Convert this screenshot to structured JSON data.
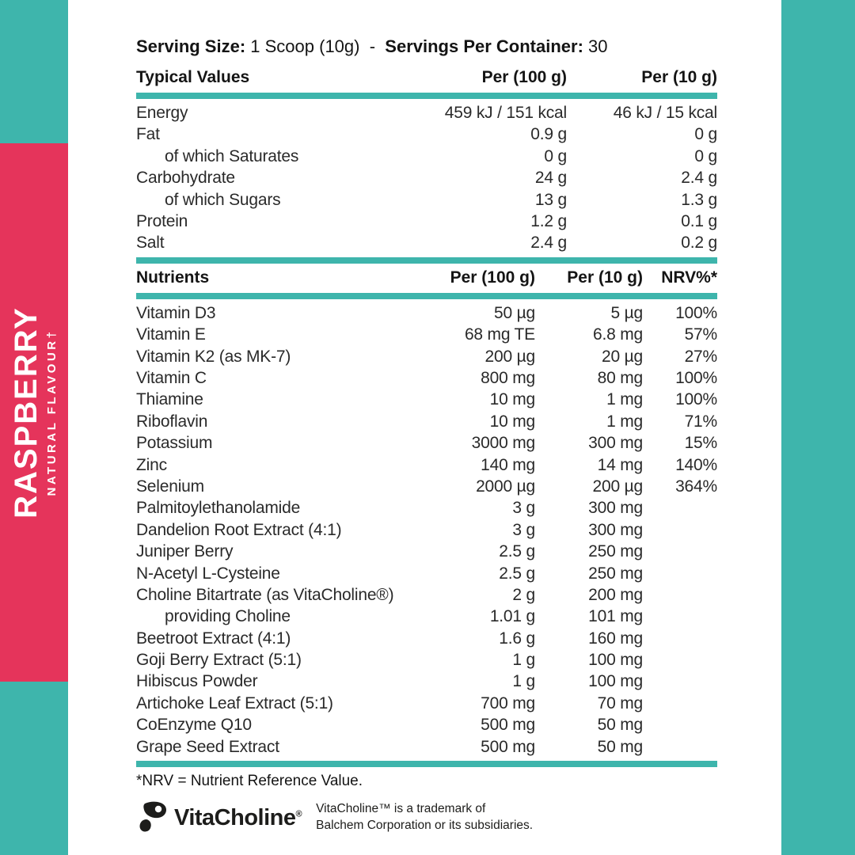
{
  "colors": {
    "teal": "#3EB5AC",
    "pink": "#E5345B",
    "text": "#2A2A2A"
  },
  "sidebar": {
    "flavor": "RASPBERRY",
    "flavor_sub": "NATURAL FLAVOUR†"
  },
  "serving": {
    "size_label": "Serving Size:",
    "size_value": "1 Scoop (10g)",
    "separator": "-",
    "container_label": "Servings Per Container:",
    "container_value": "30"
  },
  "typical_values": {
    "header": {
      "label": "Typical Values",
      "per100": "Per (100 g)",
      "per10": "Per (10 g)"
    },
    "rows": [
      {
        "label": "Energy",
        "indent": false,
        "per100": "459 kJ / 151 kcal",
        "per10": "46 kJ / 15 kcal"
      },
      {
        "label": "Fat",
        "indent": false,
        "per100": "0.9 g",
        "per10": "0 g"
      },
      {
        "label": "of which Saturates",
        "indent": true,
        "per100": "0 g",
        "per10": "0 g"
      },
      {
        "label": "Carbohydrate",
        "indent": false,
        "per100": "24 g",
        "per10": "2.4 g"
      },
      {
        "label": "of which Sugars",
        "indent": true,
        "per100": "13 g",
        "per10": "1.3 g"
      },
      {
        "label": "Protein",
        "indent": false,
        "per100": "1.2 g",
        "per10": "0.1 g"
      },
      {
        "label": "Salt",
        "indent": false,
        "per100": "2.4 g",
        "per10": "0.2 g"
      }
    ]
  },
  "nutrients": {
    "header": {
      "label": "Nutrients",
      "per100": "Per (100 g)",
      "per10": "Per (10 g)",
      "nrv": "NRV%*"
    },
    "rows": [
      {
        "label": "Vitamin D3",
        "indent": false,
        "per100": "50 µg",
        "per10": "5 µg",
        "nrv": "100%"
      },
      {
        "label": "Vitamin E",
        "indent": false,
        "per100": "68 mg TE",
        "per10": "6.8 mg",
        "nrv": "57%"
      },
      {
        "label": "Vitamin K2 (as MK-7)",
        "indent": false,
        "per100": "200 µg",
        "per10": "20 µg",
        "nrv": "27%"
      },
      {
        "label": "Vitamin C",
        "indent": false,
        "per100": "800 mg",
        "per10": "80 mg",
        "nrv": "100%"
      },
      {
        "label": "Thiamine",
        "indent": false,
        "per100": "10 mg",
        "per10": "1 mg",
        "nrv": "100%"
      },
      {
        "label": "Riboflavin",
        "indent": false,
        "per100": "10 mg",
        "per10": "1 mg",
        "nrv": "71%"
      },
      {
        "label": "Potassium",
        "indent": false,
        "per100": "3000 mg",
        "per10": "300 mg",
        "nrv": "15%"
      },
      {
        "label": "Zinc",
        "indent": false,
        "per100": "140 mg",
        "per10": "14 mg",
        "nrv": "140%"
      },
      {
        "label": "Selenium",
        "indent": false,
        "per100": "2000 µg",
        "per10": "200 µg",
        "nrv": "364%"
      },
      {
        "label": "Palmitoylethanolamide",
        "indent": false,
        "per100": "3 g",
        "per10": "300 mg",
        "nrv": ""
      },
      {
        "label": "Dandelion Root Extract (4:1)",
        "indent": false,
        "per100": "3 g",
        "per10": "300 mg",
        "nrv": ""
      },
      {
        "label": "Juniper Berry",
        "indent": false,
        "per100": "2.5 g",
        "per10": "250 mg",
        "nrv": ""
      },
      {
        "label": "N-Acetyl L-Cysteine",
        "indent": false,
        "per100": "2.5 g",
        "per10": "250 mg",
        "nrv": ""
      },
      {
        "label": "Choline Bitartrate (as VitaCholine®)",
        "indent": false,
        "per100": "2 g",
        "per10": "200 mg",
        "nrv": ""
      },
      {
        "label": "providing Choline",
        "indent": true,
        "per100": "1.01 g",
        "per10": "101 mg",
        "nrv": ""
      },
      {
        "label": "Beetroot Extract (4:1)",
        "indent": false,
        "per100": "1.6 g",
        "per10": "160 mg",
        "nrv": ""
      },
      {
        "label": "Goji Berry Extract (5:1)",
        "indent": false,
        "per100": "1 g",
        "per10": "100 mg",
        "nrv": ""
      },
      {
        "label": "Hibiscus Powder",
        "indent": false,
        "per100": "1 g",
        "per10": "100 mg",
        "nrv": ""
      },
      {
        "label": "Artichoke Leaf Extract (5:1)",
        "indent": false,
        "per100": "700 mg",
        "per10": "70 mg",
        "nrv": ""
      },
      {
        "label": "CoEnzyme Q10",
        "indent": false,
        "per100": "500 mg",
        "per10": "50 mg",
        "nrv": ""
      },
      {
        "label": "Grape Seed Extract",
        "indent": false,
        "per100": "500 mg",
        "per10": "50 mg",
        "nrv": ""
      }
    ]
  },
  "footnote": "*NRV = Nutrient Reference Value.",
  "vitacholine": {
    "icon": "vitacholine-mark-icon",
    "brand": "VitaCholine",
    "registered": "®",
    "trademark_line1": "VitaCholine™ is a trademark of",
    "trademark_line2": "Balchem Corporation or its subsidiaries."
  }
}
